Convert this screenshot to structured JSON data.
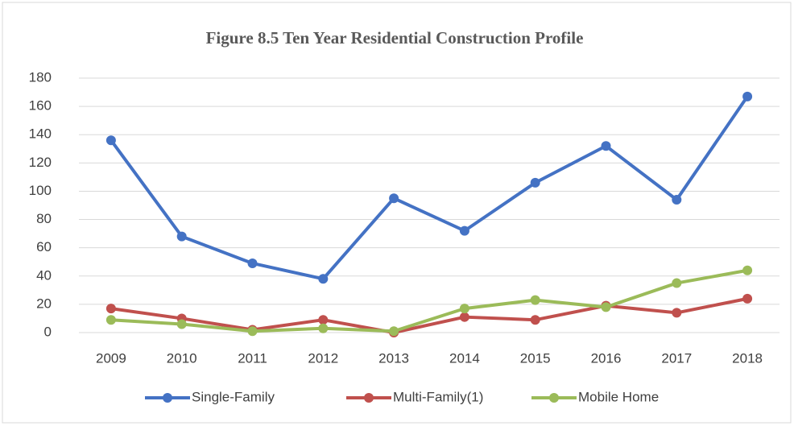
{
  "chart_data": {
    "type": "line",
    "title": "Figure 8.5 Ten Year Residential Construction Profile",
    "categories": [
      "2009",
      "2010",
      "2011",
      "2012",
      "2013",
      "2014",
      "2015",
      "2016",
      "2017",
      "2018"
    ],
    "series": [
      {
        "name": "Single-Family",
        "color": "#4472c4",
        "values": [
          136,
          68,
          49,
          38,
          95,
          72,
          106,
          132,
          94,
          167
        ]
      },
      {
        "name": "Multi-Family(1)",
        "color": "#c0504d",
        "values": [
          17,
          10,
          2,
          9,
          0,
          11,
          9,
          19,
          14,
          24
        ]
      },
      {
        "name": "Mobile Home",
        "color": "#9bbb59",
        "values": [
          9,
          6,
          1,
          3,
          1,
          17,
          23,
          18,
          35,
          44
        ]
      }
    ],
    "ylim": [
      0,
      180
    ],
    "yticks": [
      0,
      20,
      40,
      60,
      80,
      100,
      120,
      140,
      160,
      180
    ],
    "grid": true,
    "legend": "bottom"
  }
}
